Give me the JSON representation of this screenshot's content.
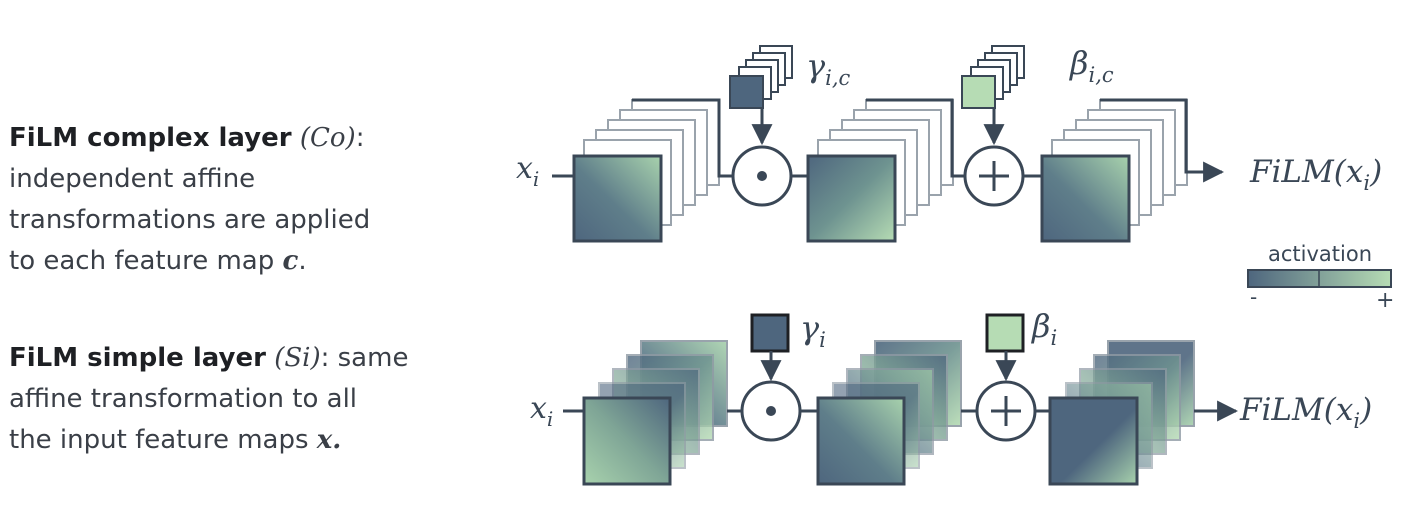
{
  "complex": {
    "title": "FiLM complex layer",
    "tag": "(Co)",
    "colon": ":",
    "line1": "independent affine",
    "line2": "transformations are applied",
    "line3_pre": "to each feature map ",
    "line3_var": "c",
    "line3_post": ".",
    "input": "x",
    "input_sub": "i",
    "gamma": "γ",
    "gamma_sub": "i,c",
    "beta": "β",
    "beta_sub": "i,c",
    "output_pre": "FiLM(x",
    "output_sub": "i",
    "output_post": ")"
  },
  "simple": {
    "title": "FiLM simple layer",
    "tag": "(Si)",
    "colon_rest": ": same",
    "line1": "affine transformation to all",
    "line2_pre": "the input feature maps ",
    "line2_var": "x.",
    "input": "x",
    "input_sub": "i",
    "gamma": "γ",
    "gamma_sub": "i",
    "beta": "β",
    "beta_sub": "i",
    "output_pre": "FiLM(x",
    "output_sub": "i",
    "output_post": ")"
  },
  "legend": {
    "title": "activation",
    "minus": "-",
    "plus": "+"
  },
  "colors": {
    "dark": "#4e667e",
    "light": "#b6dcb4",
    "stroke": "#3a4756"
  }
}
